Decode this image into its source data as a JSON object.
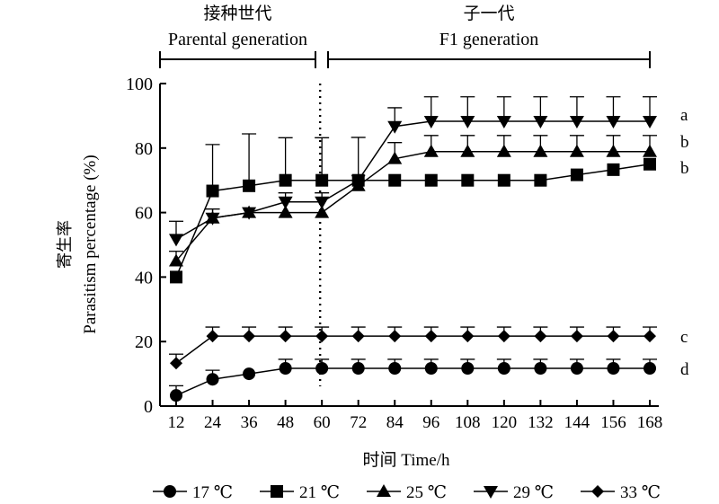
{
  "chart_data": {
    "type": "line",
    "ylabel_cn": "寄生率",
    "ylabel": "Parasitism percentage (%)",
    "xlabel": "时间 Time/h",
    "categories": [
      "12",
      "24",
      "36",
      "48",
      "60",
      "72",
      "84",
      "96",
      "108",
      "120",
      "132",
      "144",
      "156",
      "168"
    ],
    "x": [
      12,
      24,
      36,
      48,
      60,
      72,
      84,
      96,
      108,
      120,
      132,
      144,
      156,
      168
    ],
    "xlim": [
      0,
      170
    ],
    "ylim": [
      0,
      100
    ],
    "yticks": [
      "0",
      "20",
      "40",
      "60",
      "80",
      "100"
    ],
    "divider_x": 60,
    "periods": [
      {
        "label_cn": "接种世代",
        "label": "Parental generation",
        "from": 12,
        "to": 60
      },
      {
        "label_cn": "子一代",
        "label": "F1 generation",
        "from": 72,
        "to": 168
      }
    ],
    "series": [
      {
        "name": "17 ℃",
        "marker": "circle",
        "values": [
          3.3,
          8.3,
          10,
          11.7,
          11.7,
          11.7,
          11.7,
          11.7,
          11.7,
          11.7,
          11.7,
          11.7,
          11.7,
          11.7
        ],
        "errors": [
          3,
          2.8,
          0,
          2.8,
          2.8,
          2.8,
          2.8,
          2.8,
          2.8,
          2.8,
          2.8,
          2.8,
          2.8,
          2.8
        ],
        "letter": "d"
      },
      {
        "name": "21 ℃",
        "marker": "square",
        "values": [
          40,
          66.7,
          68.3,
          70,
          70,
          70,
          70,
          70,
          70,
          70,
          70,
          71.7,
          73.3,
          75
        ],
        "errors": [
          0,
          14.4,
          16.1,
          13.2,
          13.2,
          0,
          0,
          0,
          0,
          0,
          0,
          0,
          0,
          0
        ],
        "letter": "b"
      },
      {
        "name": "25 ℃",
        "marker": "triangle-up",
        "values": [
          45,
          58.3,
          60,
          60,
          60,
          68.3,
          76.7,
          78.9,
          78.9,
          78.9,
          78.9,
          78.9,
          78.9,
          78.9
        ],
        "errors": [
          3,
          2.8,
          0,
          0,
          0,
          0,
          5,
          5,
          5,
          5,
          5,
          5,
          5,
          5
        ],
        "letter": "b"
      },
      {
        "name": "29 ℃",
        "marker": "triangle-down",
        "values": [
          51.7,
          58.3,
          60,
          63.3,
          63.3,
          70,
          86.7,
          88.3,
          88.3,
          88.3,
          88.3,
          88.3,
          88.3,
          88.3
        ],
        "errors": [
          5.6,
          2.8,
          0,
          2.8,
          2.8,
          13.3,
          5.8,
          7.6,
          7.6,
          7.6,
          7.6,
          7.6,
          7.6,
          7.6
        ],
        "letter": "a"
      },
      {
        "name": "33 ℃",
        "marker": "diamond",
        "values": [
          13.3,
          21.7,
          21.7,
          21.7,
          21.7,
          21.7,
          21.7,
          21.7,
          21.7,
          21.7,
          21.7,
          21.7,
          21.7,
          21.7
        ],
        "errors": [
          2.8,
          2.8,
          2.8,
          2.8,
          2.8,
          2.8,
          2.8,
          2.8,
          2.8,
          2.8,
          2.8,
          2.8,
          2.8,
          2.8
        ],
        "letter": "c"
      }
    ],
    "legend_position": "bottom",
    "grid": false
  }
}
